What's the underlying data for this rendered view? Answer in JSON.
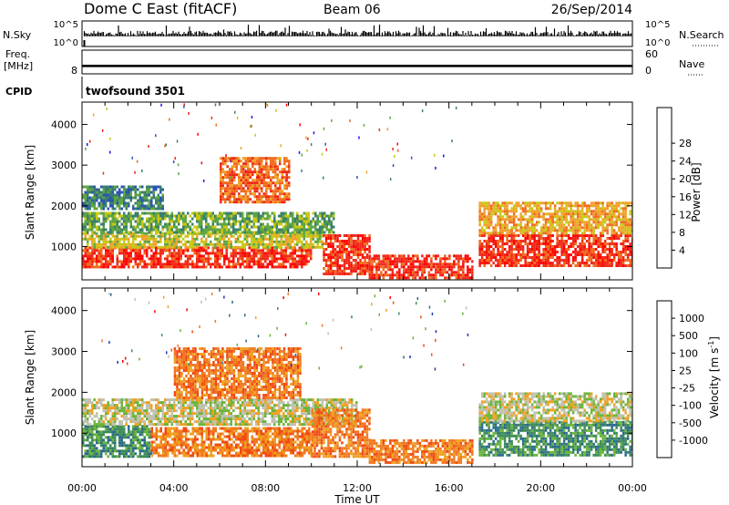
{
  "header": {
    "station": "Dome C East (fitACF)",
    "beam": "Beam 06",
    "date": "26/Sep/2014"
  },
  "top_panels": {
    "nsky_label": "N.Sky",
    "nsky_ticks": [
      "10^5",
      "10^0"
    ],
    "nsearch_label": "N.Search",
    "nsearch_ticks": [
      "10^5",
      "10^0"
    ],
    "freq_label": "Freq.",
    "freq_unit": "[MHz]",
    "freq_ticks": [
      "8"
    ],
    "nave_label": "Nave",
    "nave_ticks": [
      "60",
      "0"
    ],
    "cpid_label": "CPID",
    "cpid_value": "twofsound 3501"
  },
  "x_axis": {
    "label": "Time UT",
    "tick_labels": [
      "00:00",
      "04:00",
      "08:00",
      "12:00",
      "16:00",
      "20:00",
      "00:00"
    ],
    "range_hours": [
      0,
      24
    ]
  },
  "y_axis": {
    "label": "Slant Range [km]",
    "tick_labels": [
      "1000",
      "2000",
      "3000",
      "4000"
    ],
    "ticks": [
      1000,
      2000,
      3000,
      4000
    ],
    "range_km": [
      180,
      4550
    ]
  },
  "colorbars": {
    "power": {
      "label": "Power [dB]",
      "tick_labels": [
        "4",
        "8",
        "12",
        "16",
        "20",
        "24",
        "28"
      ],
      "colors": [
        "#1414ff",
        "#2a55b4",
        "#3a7f6e",
        "#5fa544",
        "#c8c814",
        "#f0a028",
        "#f06a1e",
        "#f02a1a",
        "#ff0000"
      ]
    },
    "velocity": {
      "label": "Velocity [m s",
      "label_sup": "-1",
      "label_end": "]",
      "tick_labels": [
        "1000",
        "500",
        "100",
        "25",
        "-25",
        "-100",
        "-500",
        "-1000"
      ],
      "colors": [
        "#2030b0",
        "#2a6a8a",
        "#3c8a5a",
        "#6ab43a",
        "#c0c0b0",
        "#f0a020",
        "#f07820",
        "#f04a14",
        "#ff0000"
      ]
    }
  },
  "chart_data": {
    "type": "heatmap",
    "panels": [
      {
        "name": "Power",
        "x_unit": "hours UT",
        "y_unit": "km",
        "value_unit": "dB",
        "echo_regions": [
          {
            "t0": 0.0,
            "t1": 10.0,
            "r0": 500,
            "r1": 1000,
            "value": 27
          },
          {
            "t0": 0.0,
            "t1": 10.5,
            "r0": 1000,
            "r1": 1350,
            "value": 14
          },
          {
            "t0": 0.0,
            "t1": 11.0,
            "r0": 1350,
            "r1": 1850,
            "value": 10
          },
          {
            "t0": 0.0,
            "t1": 3.5,
            "r0": 1900,
            "r1": 2500,
            "value": 7
          },
          {
            "t0": 6.0,
            "t1": 9.0,
            "r0": 2100,
            "r1": 3200,
            "value": 22
          },
          {
            "t0": 10.5,
            "t1": 12.5,
            "r0": 300,
            "r1": 1300,
            "value": 28
          },
          {
            "t0": 12.5,
            "t1": 17.0,
            "r0": 250,
            "r1": 800,
            "value": 29
          },
          {
            "t0": 17.3,
            "t1": 24.0,
            "r0": 500,
            "r1": 1300,
            "value": 26
          },
          {
            "t0": 17.3,
            "t1": 24.0,
            "r0": 1300,
            "r1": 2100,
            "value": 18
          }
        ]
      },
      {
        "name": "Velocity",
        "x_unit": "hours UT",
        "y_unit": "km",
        "value_unit": "m/s",
        "echo_regions": [
          {
            "t0": 0.0,
            "t1": 3.0,
            "r0": 450,
            "r1": 1200,
            "value": 120
          },
          {
            "t0": 3.0,
            "t1": 10.0,
            "r0": 450,
            "r1": 1150,
            "value": -150
          },
          {
            "t0": 0.0,
            "t1": 12.0,
            "r0": 1200,
            "r1": 1850,
            "value": 0
          },
          {
            "t0": 4.0,
            "t1": 9.5,
            "r0": 1850,
            "r1": 3100,
            "value": -180
          },
          {
            "t0": 10.0,
            "t1": 12.5,
            "r0": 400,
            "r1": 1600,
            "value": -200
          },
          {
            "t0": 12.5,
            "t1": 17.0,
            "r0": 250,
            "r1": 850,
            "value": -120
          },
          {
            "t0": 17.3,
            "t1": 24.0,
            "r0": 450,
            "r1": 1300,
            "value": 150
          },
          {
            "t0": 17.3,
            "t1": 24.0,
            "r0": 1300,
            "r1": 2000,
            "value": 0
          }
        ]
      }
    ],
    "nsky": {
      "t0": 0.1,
      "t1": 24.0,
      "level_log10": 2.6
    },
    "nave": {
      "t0": 0.0,
      "t1": 24.0,
      "value": 20
    },
    "grid": false
  }
}
